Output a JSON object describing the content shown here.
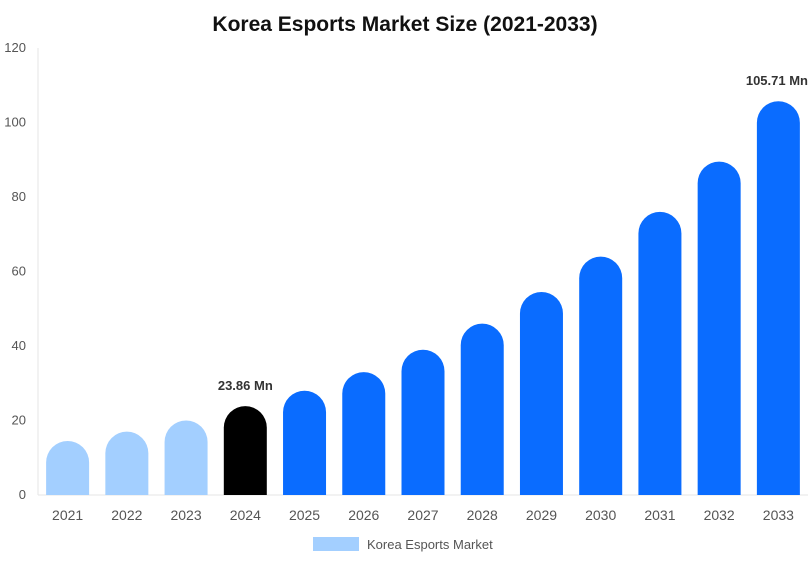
{
  "chart_data": {
    "type": "bar",
    "title": "Korea Esports Market Size (2021-2033)",
    "categories": [
      "2021",
      "2022",
      "2023",
      "2024",
      "2025",
      "2026",
      "2027",
      "2028",
      "2029",
      "2030",
      "2031",
      "2032",
      "2033"
    ],
    "series": [
      {
        "name": "Korea Esports Market",
        "values": [
          14.5,
          17.0,
          20.0,
          23.86,
          28.0,
          33.0,
          39.0,
          46.0,
          54.5,
          64.0,
          76.0,
          89.5,
          105.71
        ]
      }
    ],
    "bar_colors": [
      "#a3cfff",
      "#a3cfff",
      "#a3cfff",
      "#000000",
      "#0a6cff",
      "#0a6cff",
      "#0a6cff",
      "#0a6cff",
      "#0a6cff",
      "#0a6cff",
      "#0a6cff",
      "#0a6cff",
      "#0a6cff"
    ],
    "data_labels": [
      {
        "index": 3,
        "text": "23.86 Mn"
      },
      {
        "index": 12,
        "text": "105.71 Mn"
      }
    ],
    "ylim": [
      0,
      120
    ],
    "yticks": [
      0,
      20,
      40,
      60,
      80,
      100,
      120
    ],
    "grid": false,
    "legend": {
      "position": "bottom",
      "label": "Korea Esports Market",
      "color": "#a3cfff"
    }
  }
}
